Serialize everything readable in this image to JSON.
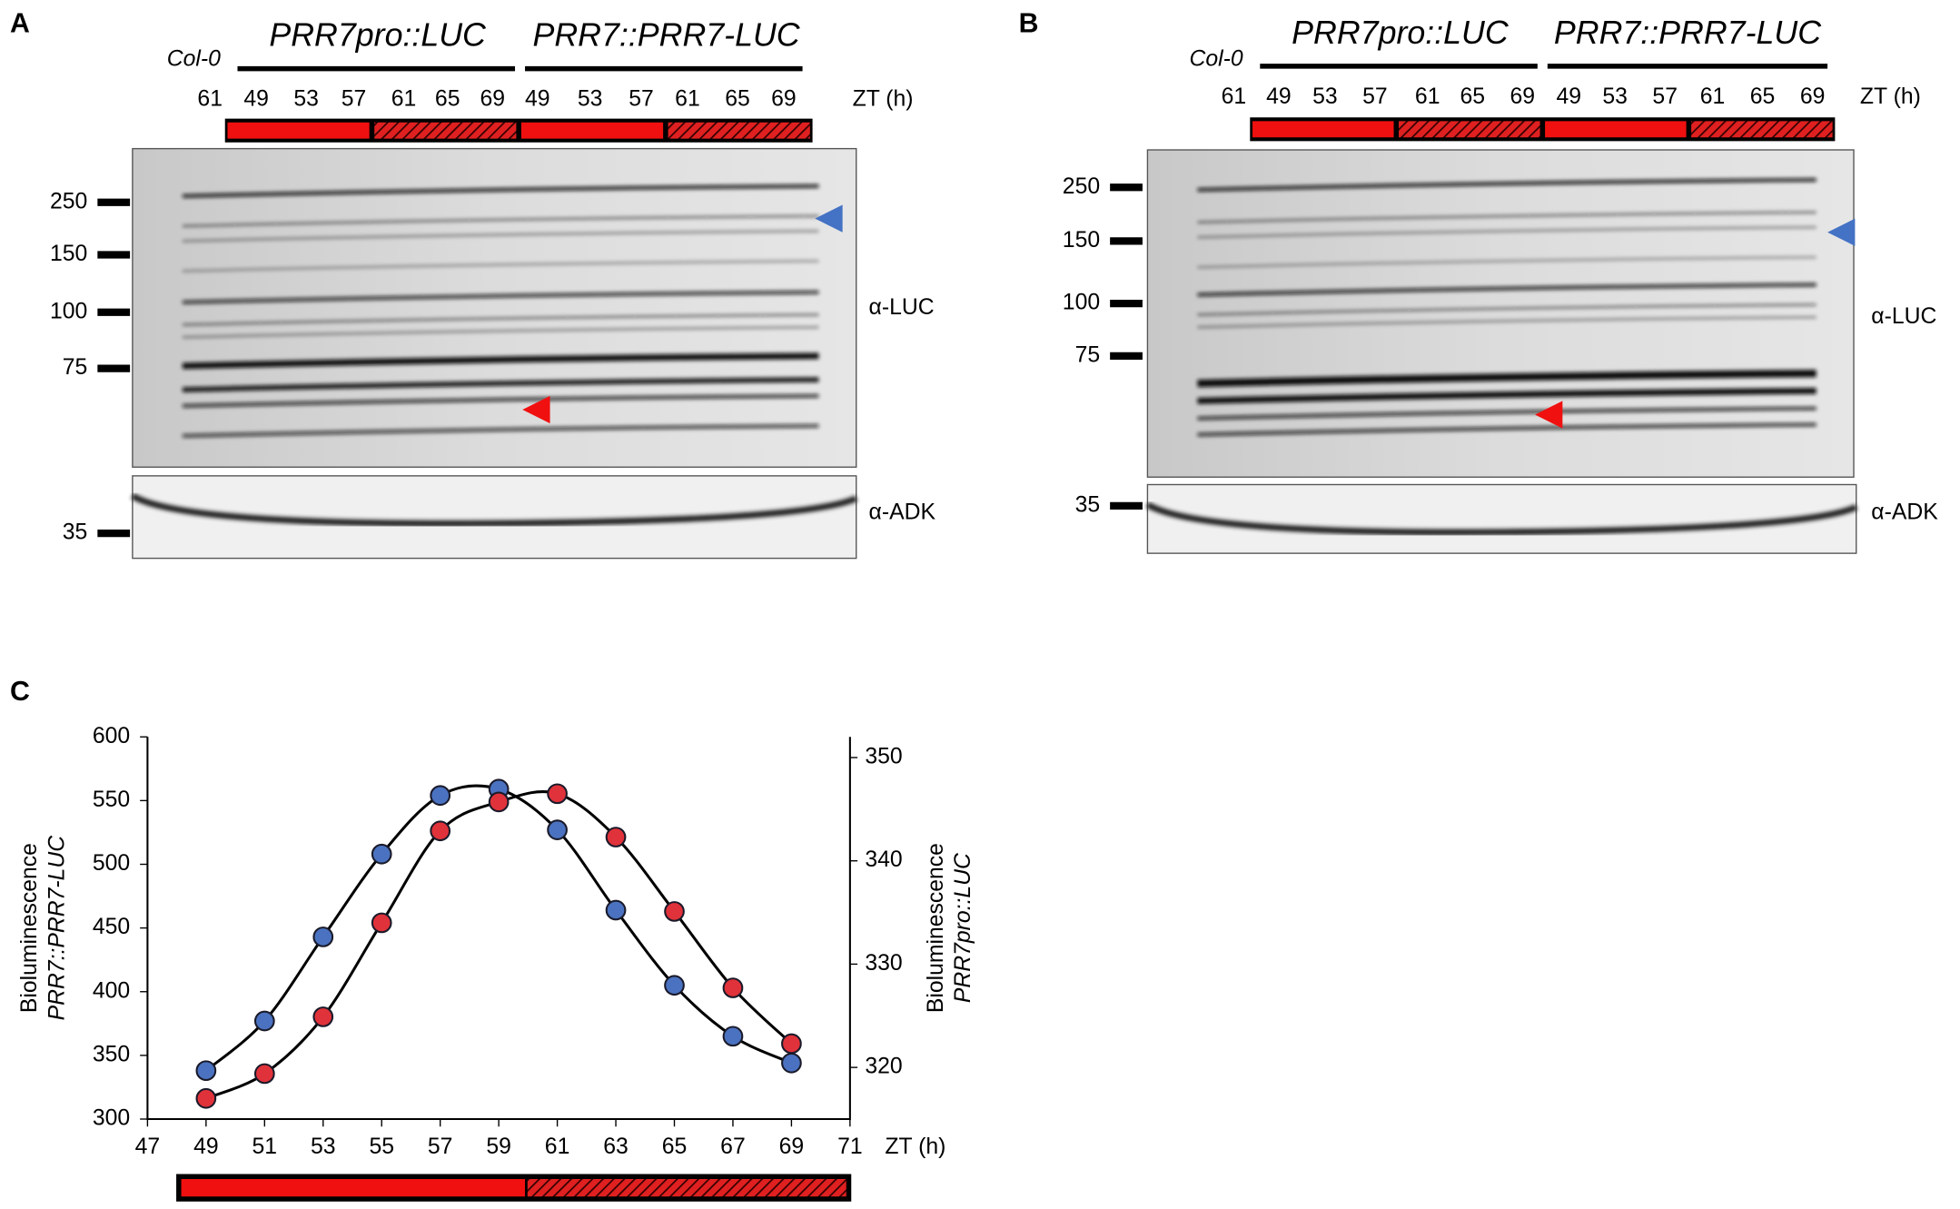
{
  "panels": [
    {
      "label": "A",
      "control": "Col-0",
      "groups": [
        "PRR7pro::LUC",
        "PRR7::PRR7-LUC"
      ],
      "lanes": [
        "61",
        "49",
        "53",
        "57",
        "61",
        "65",
        "69",
        "49",
        "53",
        "57",
        "61",
        "65",
        "69"
      ],
      "unit": "ZT (h)",
      "markers": [
        "250",
        "150",
        "100",
        "75",
        "35"
      ],
      "antibodies": [
        "α-LUC",
        "α-ADK"
      ]
    },
    {
      "label": "B",
      "control": "Col-0",
      "groups": [
        "PRR7pro::LUC",
        "PRR7::PRR7-LUC"
      ],
      "lanes": [
        "61",
        "49",
        "53",
        "57",
        "61",
        "65",
        "69",
        "49",
        "53",
        "57",
        "61",
        "65",
        "69"
      ],
      "unit": "ZT (h)",
      "markers": [
        "250",
        "150",
        "100",
        "75",
        "35"
      ],
      "antibodies": [
        "α-LUC",
        "α-ADK"
      ]
    }
  ],
  "chart_data": {
    "type": "line",
    "panel_label": "C",
    "xlabel": "ZT (h)",
    "ylabel": [
      "Bioluminescence",
      "PRR7::PRR7-LUC"
    ],
    "y2label": [
      "Bioluminescence",
      "PRR7pro::LUC"
    ],
    "x": [
      49,
      51,
      53,
      55,
      57,
      59,
      61,
      63,
      65,
      67,
      69
    ],
    "xlim": [
      47,
      71
    ],
    "xticks": [
      47,
      49,
      51,
      53,
      55,
      57,
      59,
      61,
      63,
      65,
      67,
      69,
      71
    ],
    "ylim": [
      300,
      600
    ],
    "yticks": [
      300,
      350,
      400,
      450,
      500,
      550,
      600
    ],
    "y2lim": [
      315,
      352
    ],
    "y2ticks": [
      320,
      330,
      340,
      350
    ],
    "line_color": "#000000",
    "series": [
      {
        "name": "PRR7::PRR7-LUC",
        "color": "#4a72c0",
        "values": [
          338,
          377,
          443,
          508,
          554,
          559,
          527,
          464,
          405,
          365,
          344
        ]
      },
      {
        "name": "PRR7pro::LUC",
        "color": "#e0323a",
        "axis": "y2",
        "values": [
          317.0,
          319.4,
          324.9,
          334.0,
          342.9,
          345.7,
          346.5,
          342.3,
          335.1,
          327.7,
          322.3
        ]
      }
    ]
  }
}
